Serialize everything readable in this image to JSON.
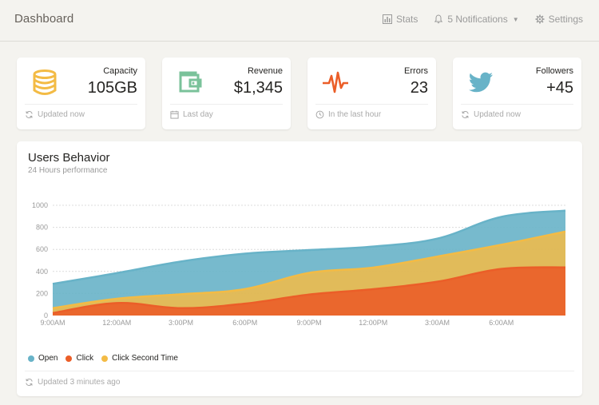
{
  "header": {
    "title": "Dashboard",
    "nav": {
      "stats_label": "Stats",
      "notifications_label": "5 Notifications",
      "settings_label": "Settings"
    }
  },
  "stats": [
    {
      "title": "Capacity",
      "value": "105GB",
      "footer": "Updated now",
      "icon": "database-icon",
      "footer_icon": "refresh-icon",
      "color": "#f3bb45"
    },
    {
      "title": "Revenue",
      "value": "$1,345",
      "footer": "Last day",
      "icon": "wallet-icon",
      "footer_icon": "calendar-icon",
      "color": "#7ac29a"
    },
    {
      "title": "Errors",
      "value": "23",
      "footer": "In the last hour",
      "icon": "pulse-icon",
      "footer_icon": "clock-icon",
      "color": "#eb5e28"
    },
    {
      "title": "Followers",
      "value": "+45",
      "footer": "Updated now",
      "icon": "twitter-icon",
      "footer_icon": "refresh-icon",
      "color": "#68b3c8"
    }
  ],
  "users_behavior": {
    "title": "Users Behavior",
    "subtitle": "24 Hours performance",
    "footer": "Updated 3 minutes ago",
    "legend": [
      {
        "label": "Open",
        "color": "#68b3c8"
      },
      {
        "label": "Click",
        "color": "#eb5e28"
      },
      {
        "label": "Click Second Time",
        "color": "#f3bb45"
      }
    ]
  },
  "chart_data": {
    "type": "area",
    "title": "Users Behavior",
    "subtitle": "24 Hours performance",
    "x": [
      "9:00AM",
      "12:00AM",
      "3:00PM",
      "6:00PM",
      "9:00PM",
      "12:00PM",
      "3:00AM",
      "6:00AM",
      ""
    ],
    "ylim": [
      0,
      1000
    ],
    "yticks": [
      0,
      200,
      400,
      600,
      800,
      1000
    ],
    "grid": true,
    "legend_position": "bottom-left",
    "series": [
      {
        "name": "Open",
        "color": "#68b3c8",
        "values": [
          287,
          385,
          490,
          562,
          594,
          626,
          698,
          895,
          952
        ]
      },
      {
        "name": "Click Second Time",
        "color": "#f3bb45",
        "values": [
          67,
          152,
          193,
          240,
          387,
          435,
          535,
          642,
          762
        ]
      },
      {
        "name": "Click",
        "color": "#eb5e28",
        "values": [
          23,
          113,
          67,
          108,
          190,
          239,
          307,
          423,
          437
        ]
      }
    ]
  }
}
